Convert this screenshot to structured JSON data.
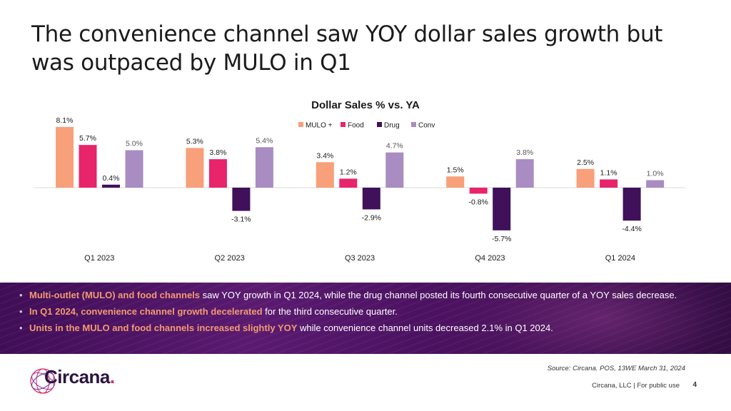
{
  "title": {
    "line1": "The convenience channel saw YOY dollar sales growth but",
    "line2": "was outpaced by MULO in Q1"
  },
  "chart_data": {
    "type": "bar",
    "title": "Dollar Sales % vs. YA",
    "categories": [
      "Q1 2023",
      "Q2 2023",
      "Q3 2023",
      "Q4 2023",
      "Q1 2024"
    ],
    "series": [
      {
        "name": "MULO +",
        "color": "#f7a07a",
        "values": [
          8.1,
          5.3,
          3.4,
          1.5,
          2.5
        ],
        "labels": [
          "8.1%",
          "5.3%",
          "3.4%",
          "1.5%",
          "2.5%"
        ]
      },
      {
        "name": "Food",
        "color": "#e8246a",
        "values": [
          5.7,
          3.8,
          1.2,
          -0.8,
          1.1
        ],
        "labels": [
          "5.7%",
          "3.8%",
          "1.2%",
          "-0.8%",
          "1.1%"
        ]
      },
      {
        "name": "Drug",
        "color": "#40105b",
        "values": [
          0.4,
          -3.1,
          -2.9,
          -5.7,
          -4.4
        ],
        "labels": [
          "0.4%",
          "-3.1%",
          "-2.9%",
          "-5.7%",
          "-4.4%"
        ]
      },
      {
        "name": "Conv",
        "color": "#a98cc2",
        "values": [
          5.0,
          5.4,
          4.7,
          3.8,
          1.0
        ],
        "labels": [
          "5.0%",
          "5.4%",
          "4.7%",
          "3.8%",
          "1.0%"
        ]
      }
    ],
    "ylim": [
      -6.5,
      8.5
    ],
    "legend": "top-center",
    "grid": false
  },
  "bullets": [
    {
      "highlight": "Multi-outlet (MULO) and food channels",
      "text": " saw YOY growth in Q1 2024, while the drug channel posted its fourth consecutive quarter of a YOY sales decrease."
    },
    {
      "highlight": "In Q1 2024, convenience channel growth decelerated",
      "text": " for the third consecutive quarter."
    },
    {
      "highlight": "Units in the MULO and food channels increased slightly YOY",
      "text": " while convenience channel units decreased 2.1% in Q1 2024."
    }
  ],
  "bullet_char": "•",
  "logo": {
    "name": "Circana",
    "dot": "."
  },
  "source": "Source: Circana. POS, 13WE March 31, 2024",
  "footer": "Circana, LLC |  For public use",
  "page_number": "4"
}
